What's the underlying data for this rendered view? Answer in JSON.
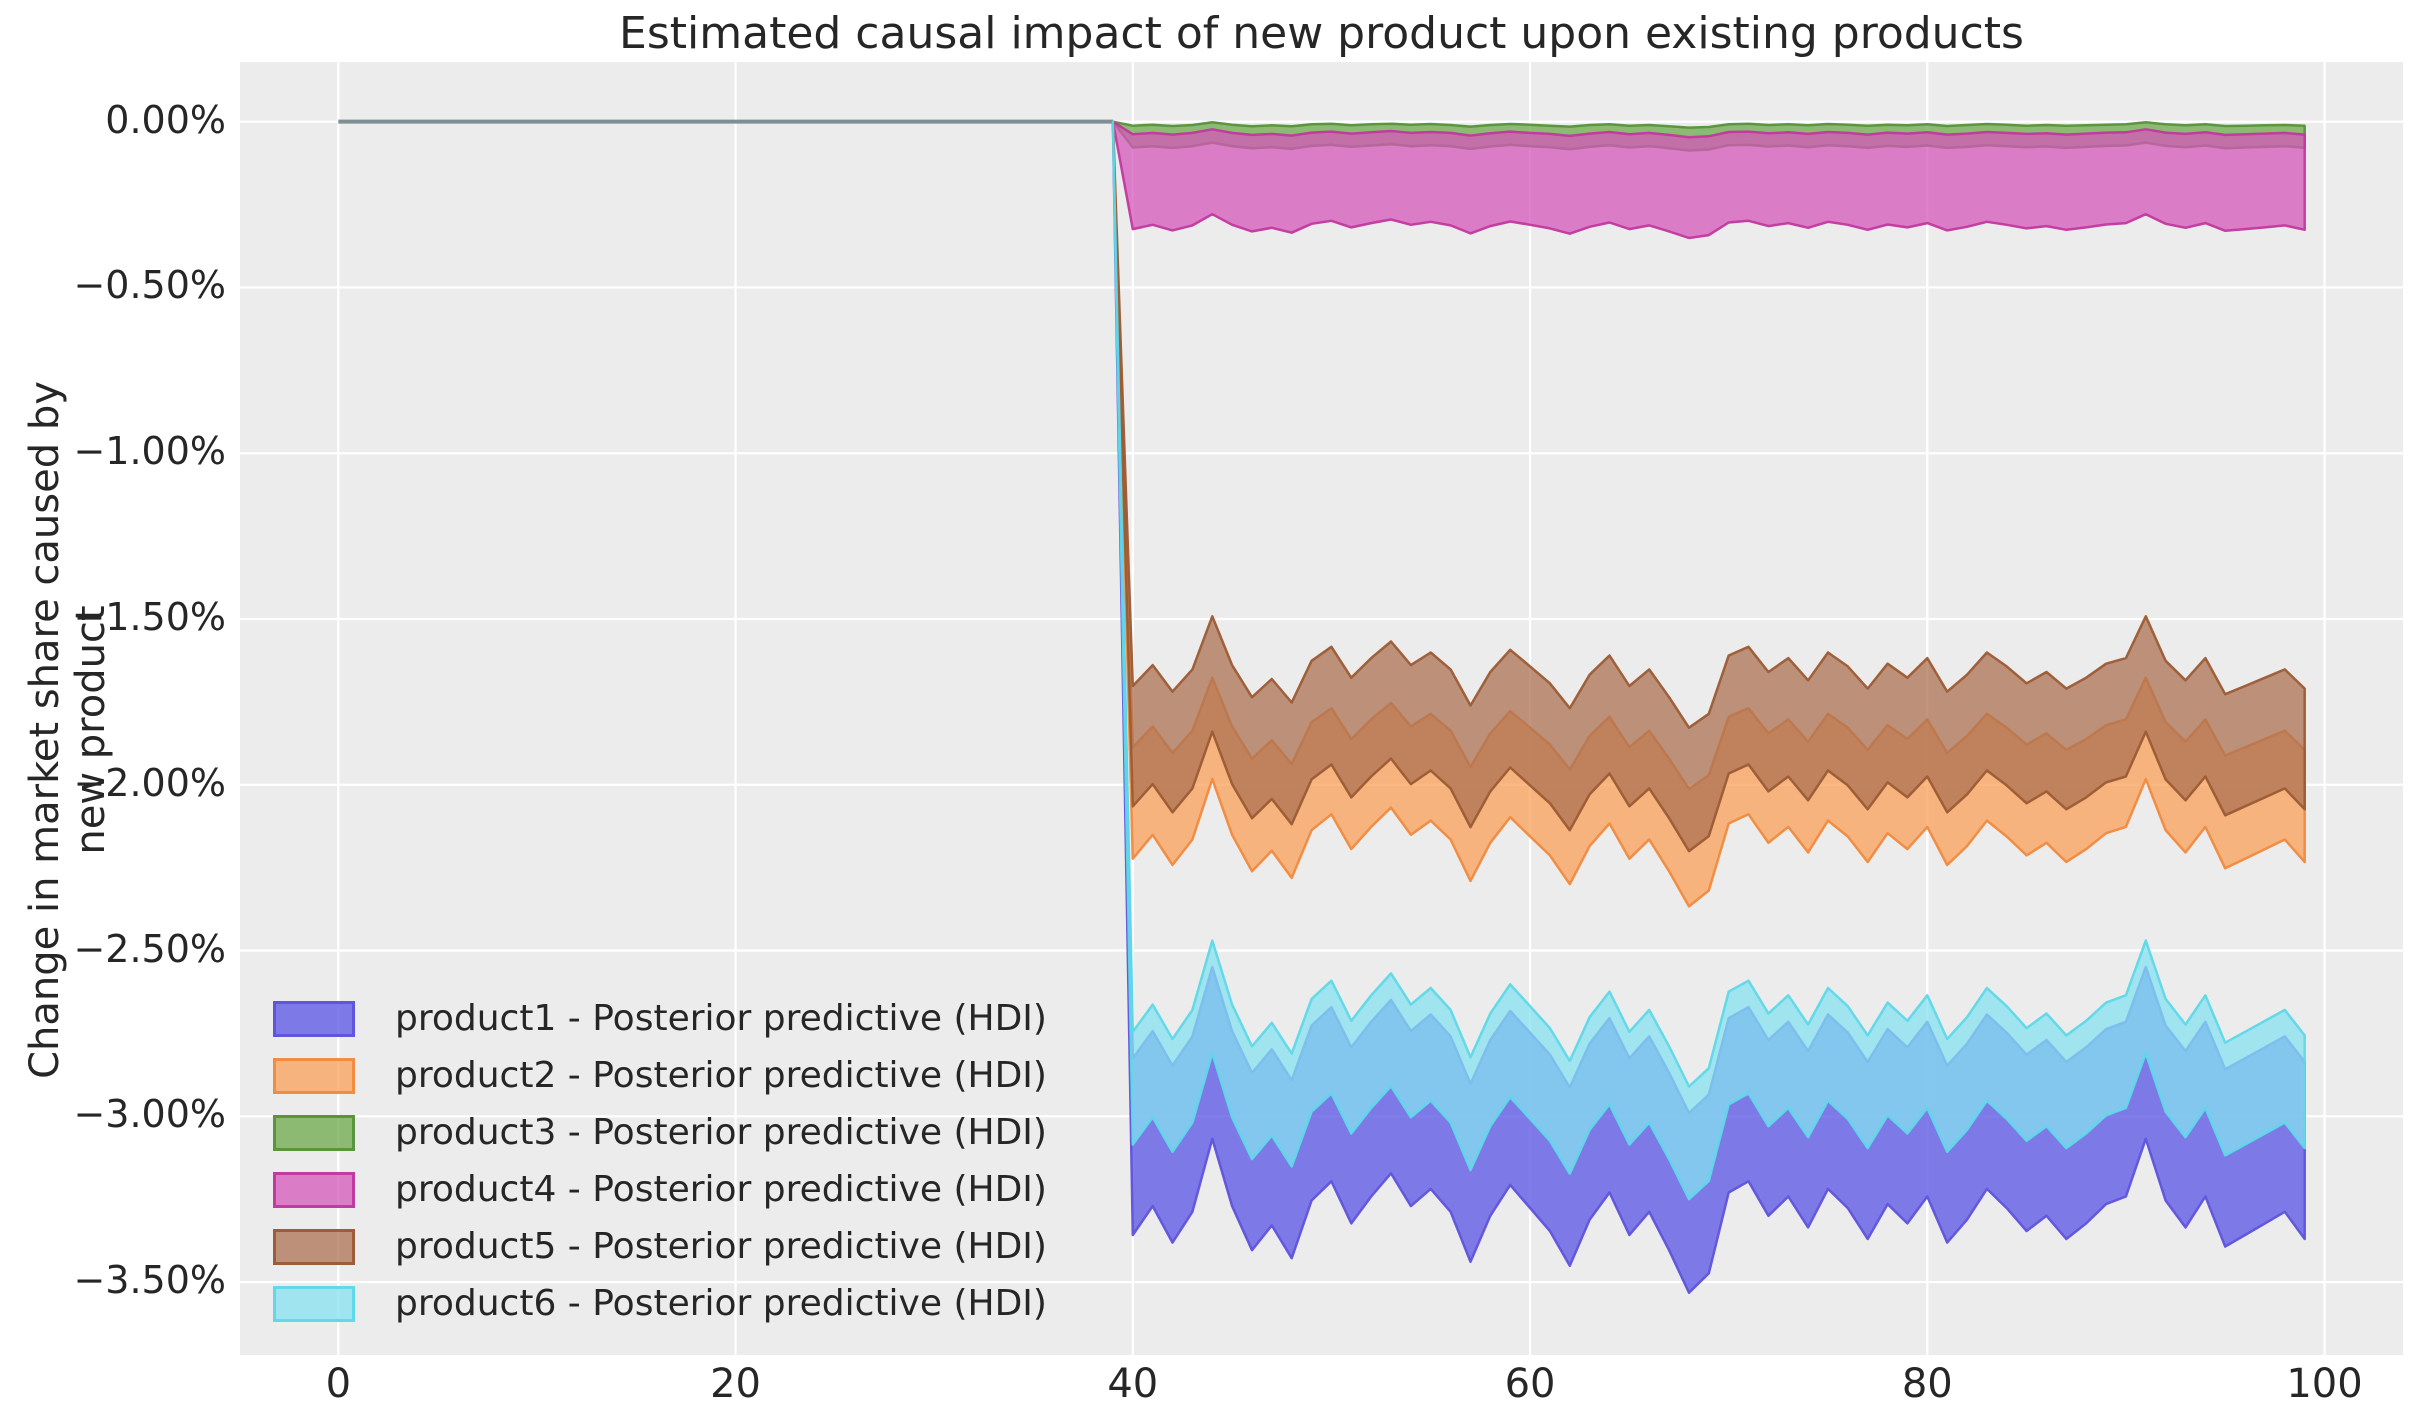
{
  "title": "Estimated causal impact of new product upon existing products",
  "ylabel": "Change in market share caused by new product",
  "axes": {
    "background": "#ececec",
    "grid_color": "#ffffff",
    "pre_line_color": "#7f8e94",
    "x_tick_values": [
      0,
      20,
      40,
      60,
      80,
      100
    ],
    "x_tick_labels": [
      "0",
      "20",
      "40",
      "60",
      "80",
      "100"
    ],
    "y_tick_values": [
      0,
      -0.5,
      -1.0,
      -1.5,
      -2.0,
      -2.5,
      -3.0,
      -3.5
    ],
    "y_tick_labels": [
      "0.00%",
      "−0.50%",
      "−1.00%",
      "−1.50%",
      "−2.00%",
      "−2.50%",
      "−3.00%",
      "−3.50%"
    ]
  },
  "chart_data": {
    "type": "area",
    "title": "Estimated causal impact of new product upon existing products",
    "xlabel": "",
    "ylabel": "Change in market share caused by new product",
    "xlim": [
      -4.95,
      103.95
    ],
    "ylim": [
      0.18,
      -3.72
    ],
    "grid": true,
    "legend_position": "lower left",
    "intervention_x": 39,
    "pre_period": {
      "x": [
        0,
        39
      ],
      "y": [
        0,
        0
      ]
    },
    "x": [
      40,
      41,
      42,
      43,
      44,
      45,
      46,
      47,
      48,
      49,
      50,
      51,
      52,
      53,
      54,
      55,
      56,
      57,
      58,
      59,
      60,
      61,
      62,
      63,
      64,
      65,
      66,
      67,
      68,
      69,
      70,
      71,
      72,
      73,
      74,
      75,
      76,
      77,
      78,
      79,
      80,
      81,
      82,
      83,
      84,
      85,
      86,
      87,
      88,
      89,
      90,
      91,
      92,
      93,
      94,
      95,
      96,
      97,
      98,
      99
    ],
    "series": [
      {
        "name": "product1 - Posterior predictive (HDI)",
        "product": "product1",
        "fill": "#6A66E6",
        "edge": "#5F53DC",
        "fill_opacity": 0.85,
        "hdi_upper": [
          -2.825,
          -2.743,
          -2.847,
          -2.759,
          -2.55,
          -2.743,
          -2.869,
          -2.798,
          -2.891,
          -2.726,
          -2.671,
          -2.792,
          -2.715,
          -2.649,
          -2.743,
          -2.693,
          -2.759,
          -2.902,
          -2.77,
          -2.682,
          -2.748,
          -2.814,
          -2.913,
          -2.781,
          -2.704,
          -2.825,
          -2.759,
          -2.869,
          -2.99,
          -2.935,
          -2.704,
          -2.671,
          -2.77,
          -2.715,
          -2.803,
          -2.693,
          -2.748,
          -2.836,
          -2.737,
          -2.792,
          -2.715,
          -2.847,
          -2.781,
          -2.693,
          -2.748,
          -2.814,
          -2.77,
          -2.836,
          -2.792,
          -2.737,
          -2.715,
          -2.55,
          -2.726,
          -2.803,
          -2.715,
          -2.858,
          -2.825,
          -2.792,
          -2.759,
          -2.836
        ],
        "hdi_lower": [
          -3.358,
          -3.271,
          -3.381,
          -3.288,
          -3.068,
          -3.271,
          -3.404,
          -3.329,
          -3.428,
          -3.254,
          -3.196,
          -3.323,
          -3.242,
          -3.172,
          -3.271,
          -3.219,
          -3.288,
          -3.439,
          -3.3,
          -3.207,
          -3.277,
          -3.346,
          -3.451,
          -3.312,
          -3.23,
          -3.358,
          -3.288,
          -3.404,
          -3.532,
          -3.474,
          -3.23,
          -3.196,
          -3.3,
          -3.242,
          -3.335,
          -3.219,
          -3.277,
          -3.37,
          -3.265,
          -3.323,
          -3.242,
          -3.381,
          -3.312,
          -3.219,
          -3.277,
          -3.346,
          -3.3,
          -3.37,
          -3.323,
          -3.265,
          -3.242,
          -3.068,
          -3.254,
          -3.335,
          -3.242,
          -3.393,
          -3.358,
          -3.323,
          -3.288,
          -3.37
        ]
      },
      {
        "name": "product2 - Posterior predictive (HDI)",
        "product": "product2",
        "fill": "#F9A059",
        "edge": "#F08A3E",
        "fill_opacity": 0.75,
        "hdi_upper": [
          -1.887,
          -1.824,
          -1.904,
          -1.837,
          -1.677,
          -1.824,
          -1.921,
          -1.866,
          -1.937,
          -1.811,
          -1.769,
          -1.862,
          -1.803,
          -1.753,
          -1.824,
          -1.786,
          -1.837,
          -1.946,
          -1.845,
          -1.778,
          -1.828,
          -1.879,
          -1.954,
          -1.853,
          -1.795,
          -1.887,
          -1.837,
          -1.921,
          -2.013,
          -1.971,
          -1.795,
          -1.769,
          -1.845,
          -1.803,
          -1.87,
          -1.786,
          -1.828,
          -1.895,
          -1.82,
          -1.862,
          -1.803,
          -1.904,
          -1.853,
          -1.786,
          -1.828,
          -1.879,
          -1.845,
          -1.895,
          -1.862,
          -1.82,
          -1.803,
          -1.677,
          -1.811,
          -1.87,
          -1.803,
          -1.912,
          -1.887,
          -1.862,
          -1.837,
          -1.895
        ],
        "hdi_lower": [
          -2.223,
          -2.151,
          -2.242,
          -2.165,
          -1.983,
          -2.151,
          -2.261,
          -2.199,
          -2.281,
          -2.137,
          -2.089,
          -2.194,
          -2.127,
          -2.069,
          -2.151,
          -2.108,
          -2.165,
          -2.29,
          -2.175,
          -2.098,
          -2.156,
          -2.213,
          -2.3,
          -2.185,
          -2.117,
          -2.223,
          -2.165,
          -2.261,
          -2.367,
          -2.319,
          -2.117,
          -2.089,
          -2.175,
          -2.127,
          -2.204,
          -2.108,
          -2.156,
          -2.233,
          -2.146,
          -2.194,
          -2.127,
          -2.242,
          -2.185,
          -2.108,
          -2.156,
          -2.213,
          -2.175,
          -2.233,
          -2.194,
          -2.146,
          -2.127,
          -1.983,
          -2.137,
          -2.204,
          -2.127,
          -2.252,
          -2.223,
          -2.194,
          -2.165,
          -2.233
        ]
      },
      {
        "name": "product3 - Posterior predictive (HDI)",
        "product": "product3",
        "fill": "#6CA949",
        "edge": "#56923A",
        "fill_opacity": 0.75,
        "hdi_upper": [
          -0.012,
          -0.009,
          -0.013,
          -0.01,
          -0.002,
          -0.009,
          -0.014,
          -0.011,
          -0.014,
          -0.008,
          -0.006,
          -0.011,
          -0.008,
          -0.006,
          -0.009,
          -0.007,
          -0.01,
          -0.015,
          -0.01,
          -0.007,
          -0.009,
          -0.012,
          -0.015,
          -0.01,
          -0.008,
          -0.012,
          -0.01,
          -0.014,
          -0.018,
          -0.016,
          -0.008,
          -0.006,
          -0.01,
          -0.008,
          -0.011,
          -0.007,
          -0.009,
          -0.012,
          -0.009,
          -0.011,
          -0.008,
          -0.013,
          -0.01,
          -0.007,
          -0.009,
          -0.012,
          -0.01,
          -0.012,
          -0.011,
          -0.009,
          -0.008,
          -0.002,
          -0.008,
          -0.011,
          -0.008,
          -0.013,
          -0.012,
          -0.011,
          -0.01,
          -0.012
        ],
        "hdi_lower": [
          -0.078,
          -0.074,
          -0.079,
          -0.074,
          -0.063,
          -0.074,
          -0.08,
          -0.077,
          -0.082,
          -0.073,
          -0.07,
          -0.076,
          -0.072,
          -0.068,
          -0.074,
          -0.071,
          -0.074,
          -0.082,
          -0.075,
          -0.07,
          -0.074,
          -0.077,
          -0.083,
          -0.076,
          -0.071,
          -0.078,
          -0.074,
          -0.08,
          -0.087,
          -0.084,
          -0.071,
          -0.07,
          -0.075,
          -0.072,
          -0.077,
          -0.071,
          -0.074,
          -0.079,
          -0.073,
          -0.076,
          -0.072,
          -0.079,
          -0.076,
          -0.071,
          -0.074,
          -0.077,
          -0.075,
          -0.079,
          -0.076,
          -0.073,
          -0.072,
          -0.063,
          -0.073,
          -0.077,
          -0.072,
          -0.08,
          -0.078,
          -0.076,
          -0.074,
          -0.079
        ]
      },
      {
        "name": "product4 - Posterior predictive (HDI)",
        "product": "product4",
        "fill": "#D457B9",
        "edge": "#C2389F",
        "fill_opacity": 0.75,
        "hdi_upper": [
          -0.038,
          -0.034,
          -0.039,
          -0.034,
          -0.023,
          -0.034,
          -0.04,
          -0.037,
          -0.042,
          -0.033,
          -0.03,
          -0.036,
          -0.032,
          -0.028,
          -0.034,
          -0.031,
          -0.034,
          -0.042,
          -0.035,
          -0.03,
          -0.034,
          -0.037,
          -0.043,
          -0.036,
          -0.031,
          -0.038,
          -0.034,
          -0.04,
          -0.047,
          -0.044,
          -0.031,
          -0.03,
          -0.035,
          -0.032,
          -0.037,
          -0.031,
          -0.034,
          -0.039,
          -0.033,
          -0.036,
          -0.032,
          -0.039,
          -0.036,
          -0.031,
          -0.034,
          -0.037,
          -0.035,
          -0.039,
          -0.036,
          -0.033,
          -0.032,
          -0.023,
          -0.033,
          -0.037,
          -0.032,
          -0.04,
          -0.038,
          -0.036,
          -0.034,
          -0.039
        ],
        "hdi_lower": [
          -0.324,
          -0.311,
          -0.328,
          -0.313,
          -0.279,
          -0.311,
          -0.331,
          -0.32,
          -0.335,
          -0.308,
          -0.299,
          -0.319,
          -0.306,
          -0.295,
          -0.311,
          -0.302,
          -0.313,
          -0.337,
          -0.315,
          -0.301,
          -0.311,
          -0.322,
          -0.338,
          -0.317,
          -0.304,
          -0.324,
          -0.313,
          -0.331,
          -0.351,
          -0.342,
          -0.304,
          -0.299,
          -0.315,
          -0.306,
          -0.32,
          -0.302,
          -0.311,
          -0.326,
          -0.31,
          -0.319,
          -0.306,
          -0.328,
          -0.317,
          -0.302,
          -0.311,
          -0.322,
          -0.315,
          -0.326,
          -0.319,
          -0.31,
          -0.306,
          -0.279,
          -0.308,
          -0.32,
          -0.306,
          -0.329,
          -0.324,
          -0.319,
          -0.313,
          -0.326
        ]
      },
      {
        "name": "product5 - Posterior predictive (HDI)",
        "product": "product5",
        "fill": "#AC7153",
        "edge": "#9C5B34",
        "fill_opacity": 0.75,
        "hdi_upper": [
          -1.702,
          -1.639,
          -1.719,
          -1.652,
          -1.492,
          -1.639,
          -1.736,
          -1.681,
          -1.752,
          -1.626,
          -1.584,
          -1.677,
          -1.618,
          -1.568,
          -1.639,
          -1.601,
          -1.652,
          -1.761,
          -1.66,
          -1.593,
          -1.643,
          -1.694,
          -1.769,
          -1.668,
          -1.61,
          -1.702,
          -1.652,
          -1.736,
          -1.828,
          -1.786,
          -1.61,
          -1.584,
          -1.66,
          -1.618,
          -1.685,
          -1.601,
          -1.643,
          -1.71,
          -1.635,
          -1.677,
          -1.618,
          -1.719,
          -1.668,
          -1.601,
          -1.643,
          -1.694,
          -1.66,
          -1.71,
          -1.677,
          -1.635,
          -1.618,
          -1.492,
          -1.626,
          -1.685,
          -1.618,
          -1.727,
          -1.702,
          -1.677,
          -1.652,
          -1.71
        ],
        "hdi_lower": [
          -2.065,
          -1.998,
          -2.083,
          -2.011,
          -1.84,
          -1.998,
          -2.101,
          -2.043,
          -2.119,
          -1.984,
          -1.939,
          -2.038,
          -1.975,
          -1.921,
          -1.998,
          -1.957,
          -2.011,
          -2.128,
          -2.02,
          -1.948,
          -2.002,
          -2.056,
          -2.137,
          -2.029,
          -1.966,
          -2.065,
          -2.011,
          -2.101,
          -2.2,
          -2.155,
          -1.966,
          -1.939,
          -2.02,
          -1.975,
          -2.047,
          -1.957,
          -2.002,
          -2.074,
          -1.993,
          -2.038,
          -1.975,
          -2.083,
          -2.029,
          -1.957,
          -2.002,
          -2.056,
          -2.02,
          -2.074,
          -2.038,
          -1.993,
          -1.975,
          -1.84,
          -1.984,
          -2.047,
          -1.975,
          -2.092,
          -2.065,
          -2.038,
          -2.011,
          -2.074
        ]
      },
      {
        "name": "product6 - Posterior predictive (HDI)",
        "product": "product6",
        "fill": "#85E1F0",
        "edge": "#5FD8E8",
        "fill_opacity": 0.75,
        "hdi_upper": [
          -2.745,
          -2.663,
          -2.767,
          -2.679,
          -2.47,
          -2.663,
          -2.789,
          -2.718,
          -2.811,
          -2.646,
          -2.591,
          -2.712,
          -2.635,
          -2.569,
          -2.663,
          -2.613,
          -2.679,
          -2.822,
          -2.69,
          -2.602,
          -2.668,
          -2.734,
          -2.833,
          -2.701,
          -2.624,
          -2.745,
          -2.679,
          -2.789,
          -2.91,
          -2.855,
          -2.624,
          -2.591,
          -2.69,
          -2.635,
          -2.723,
          -2.613,
          -2.668,
          -2.756,
          -2.657,
          -2.712,
          -2.635,
          -2.767,
          -2.701,
          -2.613,
          -2.668,
          -2.734,
          -2.69,
          -2.756,
          -2.712,
          -2.657,
          -2.635,
          -2.47,
          -2.646,
          -2.723,
          -2.635,
          -2.778,
          -2.745,
          -2.712,
          -2.679,
          -2.756
        ],
        "hdi_lower": [
          -3.085,
          -3.003,
          -3.107,
          -3.019,
          -2.81,
          -3.003,
          -3.129,
          -3.058,
          -3.151,
          -2.986,
          -2.931,
          -3.052,
          -2.975,
          -2.909,
          -3.003,
          -2.953,
          -3.019,
          -3.162,
          -3.03,
          -2.942,
          -3.008,
          -3.074,
          -3.173,
          -3.041,
          -2.964,
          -3.085,
          -3.019,
          -3.129,
          -3.25,
          -3.195,
          -2.964,
          -2.931,
          -3.03,
          -2.975,
          -3.063,
          -2.953,
          -3.008,
          -3.096,
          -2.997,
          -3.052,
          -2.975,
          -3.107,
          -3.041,
          -2.953,
          -3.008,
          -3.074,
          -3.03,
          -3.096,
          -3.052,
          -2.997,
          -2.975,
          -2.81,
          -2.986,
          -3.063,
          -2.975,
          -3.118,
          -3.085,
          -3.052,
          -3.019,
          -3.096
        ]
      }
    ]
  },
  "legend": {
    "entries": [
      "product1 - Posterior predictive (HDI)",
      "product2 - Posterior predictive (HDI)",
      "product3 - Posterior predictive (HDI)",
      "product4 - Posterior predictive (HDI)",
      "product5 - Posterior predictive (HDI)",
      "product6 - Posterior predictive (HDI)"
    ]
  }
}
